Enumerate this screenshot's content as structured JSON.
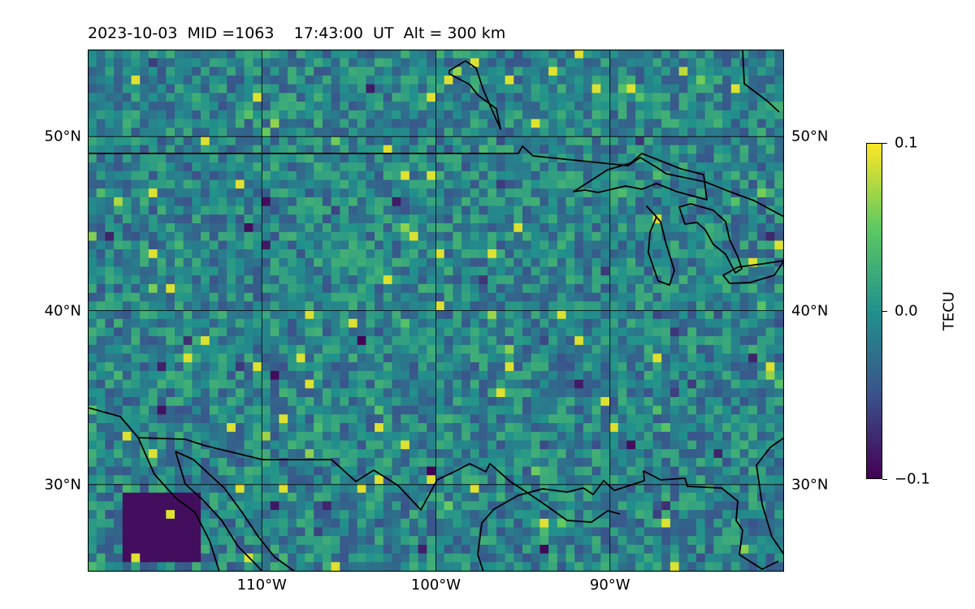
{
  "header": {
    "date": "2023-10-03",
    "mid": "MID =1063",
    "time": "17:43:00  UT",
    "altitude": "Alt = 300 km"
  },
  "map": {
    "extent": {
      "lon_min": -120,
      "lon_max": -80,
      "lat_min": 25,
      "lat_max": 55
    },
    "lat_ticks": [
      {
        "value": 50,
        "label": "50°N"
      },
      {
        "value": 40,
        "label": "40°N"
      },
      {
        "value": 30,
        "label": "30°N"
      }
    ],
    "lon_ticks": [
      {
        "value": -110,
        "label": "110°W"
      },
      {
        "value": -100,
        "label": "100°W"
      },
      {
        "value": -90,
        "label": "90°W"
      }
    ],
    "grid": true,
    "colormap": "viridis",
    "features": [
      "coastline",
      "country-borders",
      "great-lakes"
    ]
  },
  "colorbar": {
    "label": "TECU",
    "min": -0.1,
    "max": 0.1,
    "ticks": [
      {
        "value": 0.1,
        "label": "0.1"
      },
      {
        "value": 0.0,
        "label": "0.0"
      },
      {
        "value": -0.1,
        "label": "−0.1"
      }
    ],
    "colors": [
      "#440154",
      "#3b528b",
      "#21918c",
      "#5ec962",
      "#fde725"
    ]
  }
}
